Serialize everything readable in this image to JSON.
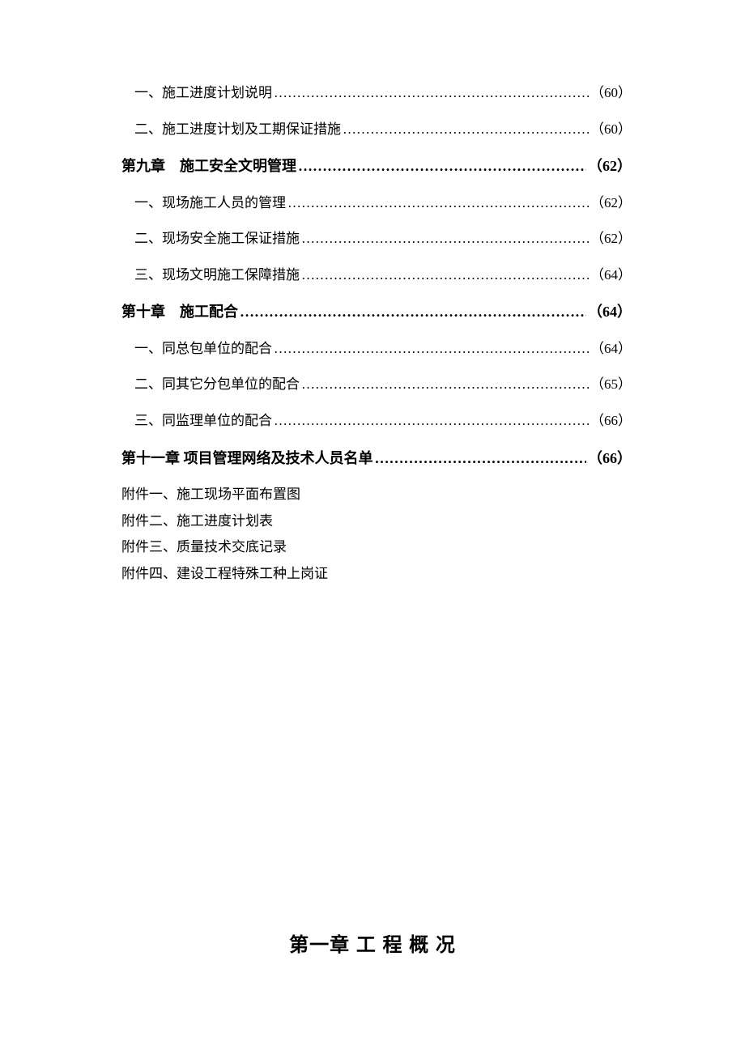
{
  "toc": [
    {
      "type": "sub",
      "label": "一、施工进度计划说明",
      "page": "（60）"
    },
    {
      "type": "sub",
      "label": "二、施工进度计划及工期保证措施",
      "page": "（60）"
    },
    {
      "type": "chapter",
      "label": "第九章　施工安全文明管理",
      "page": "（62）"
    },
    {
      "type": "sub",
      "label": "一、现场施工人员的管理",
      "page": "（62）"
    },
    {
      "type": "sub",
      "label": "二、现场安全施工保证措施",
      "page": "（62）"
    },
    {
      "type": "sub",
      "label": "三、现场文明施工保障措施",
      "page": "（64）"
    },
    {
      "type": "chapter",
      "label": "第十章　施工配合",
      "page": "（64）"
    },
    {
      "type": "sub",
      "label": "一、同总包单位的配合",
      "page": "（64）"
    },
    {
      "type": "sub",
      "label": "二、同其它分包单位的配合",
      "page": "（65）"
    },
    {
      "type": "sub",
      "label": "三、同监理单位的配合",
      "page": "（66）"
    },
    {
      "type": "chapter",
      "label": "第十一章 项目管理网络及技术人员名单",
      "page": "（66）"
    }
  ],
  "appendices": [
    "附件一、施工现场平面布置图",
    "附件二、施工进度计划表",
    "附件三、质量技术交底记录",
    "附件四、建设工程特殊工种上岗证"
  ],
  "chapterTitle": "第一章 工 程 概 况",
  "dotsLeader": "…………………………………………………………………………………………………………"
}
